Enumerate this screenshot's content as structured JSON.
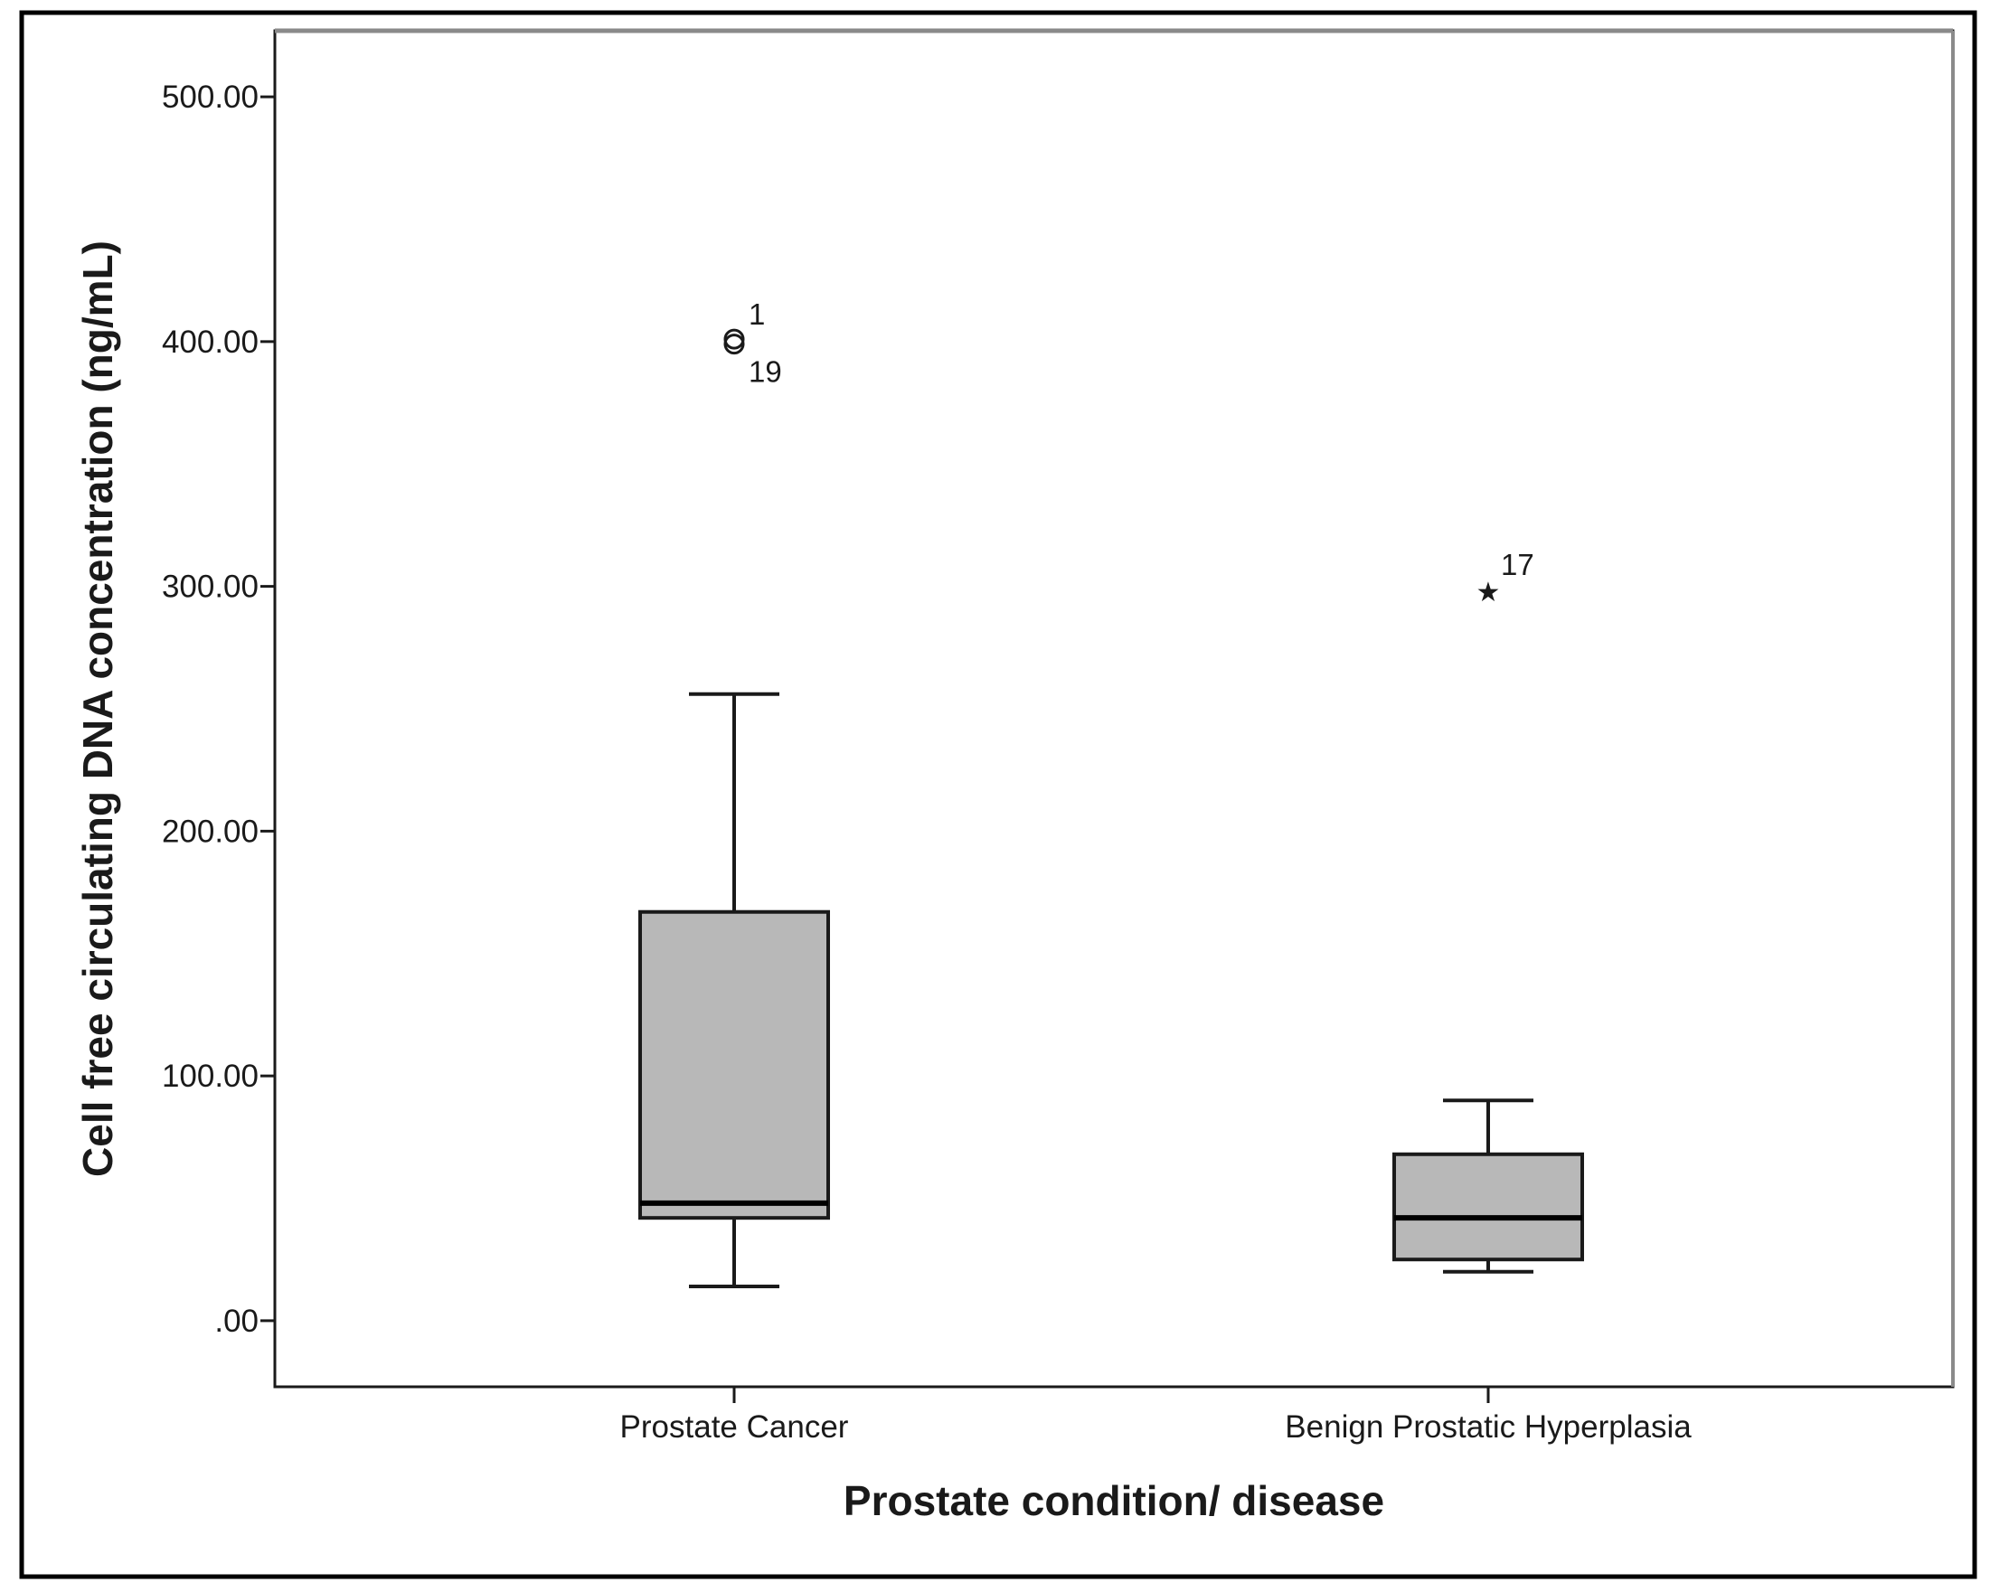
{
  "chart_data": {
    "type": "box",
    "xlabel": "Prostate condition/ disease",
    "ylabel": "Cell free circulating DNA concentration (ng/mL)",
    "ylim": [
      -27,
      527
    ],
    "yticks": [
      0,
      100,
      200,
      300,
      400,
      500
    ],
    "ytick_labels": [
      ".00",
      "100.00",
      "200.00",
      "300.00",
      "400.00",
      "500.00"
    ],
    "grid": false,
    "legend": "none",
    "colors": {
      "box_fill": "#b8b8b8",
      "stroke": "#1a1a1a",
      "frame": "#000000"
    },
    "categories": [
      "Prostate Cancer",
      "Benign Prostatic Hyperplasia"
    ],
    "series": [
      {
        "category": "Prostate Cancer",
        "whisker_low": 14,
        "q1": 42,
        "median": 48,
        "q3": 167,
        "whisker_high": 256,
        "outliers": [
          {
            "value": 401,
            "label": "1",
            "marker": "circle"
          },
          {
            "value": 399,
            "label": "19",
            "marker": "circle"
          }
        ]
      },
      {
        "category": "Benign Prostatic Hyperplasia",
        "whisker_low": 20,
        "q1": 25,
        "median": 42,
        "q3": 68,
        "whisker_high": 90,
        "outliers": [
          {
            "value": 298,
            "label": "17",
            "marker": "star"
          }
        ]
      }
    ]
  }
}
